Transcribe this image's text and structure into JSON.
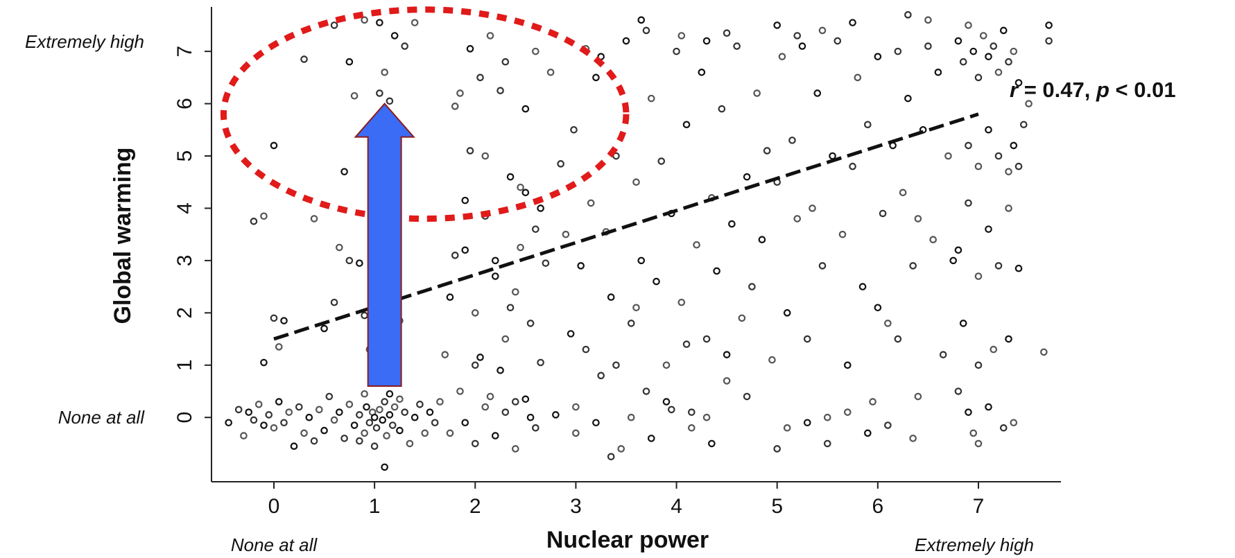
{
  "chart_data": {
    "type": "scatter",
    "title": "",
    "xlabel": "Nuclear power",
    "ylabel": "Global warming",
    "xlim": [
      -0.62,
      7.82
    ],
    "ylim": [
      -1.23,
      7.85
    ],
    "x_ticks": [
      "0",
      "1",
      "2",
      "3",
      "4",
      "5",
      "6",
      "7"
    ],
    "y_ticks": [
      "0",
      "1",
      "2",
      "3",
      "4",
      "5",
      "6",
      "7"
    ],
    "x_anchor_low": "None at all",
    "x_anchor_high": "Extremely high",
    "y_anchor_low": "None at all",
    "y_anchor_high": "Extremely high",
    "grid": false,
    "regression": {
      "style": "dashed",
      "x": [
        0,
        7
      ],
      "y": [
        1.5,
        5.8
      ],
      "label_r": "r",
      "label_rest": " = 0.47, ",
      "label_p": "p",
      "label_tail": " < 0.01"
    },
    "annotations": {
      "ellipse": {
        "color": "#e11a1a",
        "style": "dotted",
        "center": [
          1.5,
          5.8
        ],
        "rx": 2.0,
        "ry": 2.0
      },
      "arrow": {
        "color": "#3b6cf6",
        "from": [
          1.1,
          0.6
        ],
        "to": [
          1.1,
          6.0
        ]
      }
    },
    "point_style": {
      "marker": "hollow circle",
      "color": "#333333"
    },
    "points": [
      [
        -0.45,
        -0.1
      ],
      [
        -0.35,
        0.15
      ],
      [
        -0.3,
        -0.35
      ],
      [
        -0.25,
        0.1
      ],
      [
        -0.2,
        -0.05
      ],
      [
        -0.15,
        0.25
      ],
      [
        -0.1,
        -0.15
      ],
      [
        -0.05,
        0.05
      ],
      [
        0.0,
        -0.2
      ],
      [
        0.05,
        0.3
      ],
      [
        0.1,
        -0.1
      ],
      [
        0.15,
        0.1
      ],
      [
        0.2,
        -0.55
      ],
      [
        0.25,
        0.2
      ],
      [
        0.3,
        -0.3
      ],
      [
        0.35,
        0.0
      ],
      [
        0.4,
        -0.45
      ],
      [
        0.45,
        0.15
      ],
      [
        0.5,
        -0.25
      ],
      [
        0.55,
        0.4
      ],
      [
        0.6,
        -0.05
      ],
      [
        0.65,
        0.1
      ],
      [
        0.7,
        -0.4
      ],
      [
        0.75,
        0.25
      ],
      [
        0.8,
        -0.15
      ],
      [
        0.85,
        0.05
      ],
      [
        0.9,
        -0.3
      ],
      [
        0.92,
        0.2
      ],
      [
        0.95,
        -0.1
      ],
      [
        0.98,
        0.1
      ],
      [
        1.0,
        0.0
      ],
      [
        1.02,
        -0.2
      ],
      [
        1.05,
        0.15
      ],
      [
        1.08,
        -0.05
      ],
      [
        1.1,
        0.3
      ],
      [
        1.12,
        -0.35
      ],
      [
        1.15,
        0.05
      ],
      [
        1.18,
        -0.15
      ],
      [
        1.2,
        0.2
      ],
      [
        1.25,
        -0.25
      ],
      [
        1.3,
        0.1
      ],
      [
        1.35,
        -0.5
      ],
      [
        1.4,
        0.0
      ],
      [
        1.45,
        0.25
      ],
      [
        1.5,
        -0.3
      ],
      [
        1.55,
        0.1
      ],
      [
        1.6,
        -0.1
      ],
      [
        1.65,
        0.3
      ],
      [
        1.1,
        -0.95
      ],
      [
        1.0,
        -0.55
      ],
      [
        0.9,
        0.45
      ],
      [
        1.15,
        0.45
      ],
      [
        0.85,
        -0.45
      ],
      [
        1.25,
        0.35
      ],
      [
        -0.1,
        1.05
      ],
      [
        0.0,
        1.9
      ],
      [
        0.05,
        1.35
      ],
      [
        0.1,
        1.85
      ],
      [
        -0.2,
        3.75
      ],
      [
        -0.1,
        3.85
      ],
      [
        0.0,
        5.2
      ],
      [
        0.3,
        6.85
      ],
      [
        0.4,
        3.8
      ],
      [
        0.5,
        1.7
      ],
      [
        0.6,
        2.2
      ],
      [
        0.65,
        3.25
      ],
      [
        0.7,
        4.7
      ],
      [
        0.75,
        3.0
      ],
      [
        0.8,
        6.15
      ],
      [
        0.85,
        2.95
      ],
      [
        0.9,
        1.95
      ],
      [
        0.95,
        1.3
      ],
      [
        1.0,
        4.9
      ],
      [
        1.05,
        6.2
      ],
      [
        1.1,
        6.6
      ],
      [
        1.15,
        3.3
      ],
      [
        1.2,
        5.35
      ],
      [
        1.25,
        1.85
      ],
      [
        0.75,
        6.8
      ],
      [
        0.6,
        7.5
      ],
      [
        0.9,
        7.6
      ],
      [
        1.05,
        7.55
      ],
      [
        1.3,
        7.1
      ],
      [
        1.4,
        7.55
      ],
      [
        1.2,
        7.3
      ],
      [
        1.15,
        6.05
      ],
      [
        1.7,
        1.2
      ],
      [
        1.75,
        2.3
      ],
      [
        1.8,
        3.1
      ],
      [
        1.85,
        0.5
      ],
      [
        1.9,
        4.15
      ],
      [
        1.95,
        5.1
      ],
      [
        2.0,
        2.0
      ],
      [
        2.05,
        1.15
      ],
      [
        2.1,
        3.85
      ],
      [
        2.15,
        0.4
      ],
      [
        2.2,
        2.7
      ],
      [
        2.25,
        6.25
      ],
      [
        2.3,
        1.5
      ],
      [
        2.35,
        4.6
      ],
      [
        2.4,
        0.3
      ],
      [
        2.45,
        3.25
      ],
      [
        2.5,
        5.9
      ],
      [
        2.55,
        1.8
      ],
      [
        2.6,
        7.0
      ],
      [
        2.65,
        4.0
      ],
      [
        2.7,
        2.95
      ],
      [
        2.75,
        6.6
      ],
      [
        2.8,
        0.05
      ],
      [
        2.85,
        4.85
      ],
      [
        2.9,
        3.5
      ],
      [
        2.95,
        1.6
      ],
      [
        2.98,
        5.5
      ],
      [
        1.85,
        6.2
      ],
      [
        1.95,
        7.05
      ],
      [
        2.05,
        6.5
      ],
      [
        2.15,
        7.3
      ],
      [
        2.25,
        0.9
      ],
      [
        2.35,
        2.1
      ],
      [
        2.45,
        4.4
      ],
      [
        2.55,
        0.0
      ],
      [
        2.65,
        1.05
      ],
      [
        1.75,
        -0.3
      ],
      [
        1.9,
        -0.1
      ],
      [
        2.0,
        -0.5
      ],
      [
        2.1,
        0.2
      ],
      [
        2.2,
        -0.35
      ],
      [
        2.3,
        0.1
      ],
      [
        2.4,
        -0.6
      ],
      [
        2.5,
        0.35
      ],
      [
        2.6,
        -0.2
      ],
      [
        1.8,
        5.95
      ],
      [
        1.9,
        3.2
      ],
      [
        2.0,
        1.0
      ],
      [
        2.1,
        5.0
      ],
      [
        2.2,
        3.0
      ],
      [
        2.3,
        6.8
      ],
      [
        2.4,
        2.4
      ],
      [
        2.5,
        4.3
      ],
      [
        2.6,
        3.6
      ],
      [
        3.0,
        0.2
      ],
      [
        3.05,
        2.9
      ],
      [
        3.1,
        1.3
      ],
      [
        3.15,
        4.1
      ],
      [
        3.2,
        6.5
      ],
      [
        3.25,
        0.8
      ],
      [
        3.3,
        3.55
      ],
      [
        3.35,
        2.3
      ],
      [
        3.4,
        5.0
      ],
      [
        3.45,
        -0.6
      ],
      [
        3.5,
        7.2
      ],
      [
        3.55,
        1.8
      ],
      [
        3.6,
        4.5
      ],
      [
        3.65,
        3.0
      ],
      [
        3.7,
        0.5
      ],
      [
        3.75,
        6.1
      ],
      [
        3.8,
        2.6
      ],
      [
        3.85,
        4.9
      ],
      [
        3.9,
        1.0
      ],
      [
        3.95,
        3.9
      ],
      [
        4.0,
        7.0
      ],
      [
        4.05,
        2.2
      ],
      [
        4.1,
        5.6
      ],
      [
        4.15,
        0.1
      ],
      [
        4.2,
        3.3
      ],
      [
        4.25,
        6.6
      ],
      [
        4.3,
        1.5
      ],
      [
        4.35,
        4.2
      ],
      [
        4.4,
        2.8
      ],
      [
        4.45,
        5.9
      ],
      [
        4.5,
        0.7
      ],
      [
        4.55,
        3.7
      ],
      [
        4.6,
        7.1
      ],
      [
        4.65,
        1.9
      ],
      [
        4.7,
        4.6
      ],
      [
        4.75,
        2.5
      ],
      [
        4.8,
        6.2
      ],
      [
        4.85,
        3.4
      ],
      [
        4.9,
        5.1
      ],
      [
        4.95,
        1.1
      ],
      [
        3.65,
        7.6
      ],
      [
        3.7,
        7.4
      ],
      [
        4.05,
        7.3
      ],
      [
        4.3,
        7.2
      ],
      [
        4.5,
        7.35
      ],
      [
        3.1,
        7.05
      ],
      [
        3.25,
        6.9
      ],
      [
        3.4,
        1.0
      ],
      [
        3.6,
        2.1
      ],
      [
        3.9,
        0.3
      ],
      [
        4.1,
        1.4
      ],
      [
        4.3,
        0.0
      ],
      [
        4.5,
        1.2
      ],
      [
        4.7,
        0.4
      ],
      [
        3.0,
        -0.3
      ],
      [
        3.2,
        -0.1
      ],
      [
        3.35,
        -0.75
      ],
      [
        3.55,
        0.0
      ],
      [
        3.75,
        -0.4
      ],
      [
        3.95,
        0.15
      ],
      [
        4.15,
        -0.2
      ],
      [
        4.35,
        -0.5
      ],
      [
        5.0,
        4.5
      ],
      [
        5.05,
        6.9
      ],
      [
        5.1,
        2.0
      ],
      [
        5.15,
        5.3
      ],
      [
        5.2,
        3.8
      ],
      [
        5.25,
        7.1
      ],
      [
        5.3,
        1.5
      ],
      [
        5.35,
        4.0
      ],
      [
        5.4,
        6.2
      ],
      [
        5.45,
        2.9
      ],
      [
        5.5,
        0.0
      ],
      [
        5.55,
        5.0
      ],
      [
        5.6,
        7.2
      ],
      [
        5.65,
        3.5
      ],
      [
        5.7,
        1.0
      ],
      [
        5.75,
        4.8
      ],
      [
        5.8,
        6.5
      ],
      [
        5.85,
        2.5
      ],
      [
        5.9,
        5.6
      ],
      [
        5.95,
        0.3
      ],
      [
        6.0,
        6.9
      ],
      [
        6.05,
        3.9
      ],
      [
        6.1,
        1.8
      ],
      [
        6.15,
        5.2
      ],
      [
        6.2,
        7.0
      ],
      [
        6.25,
        4.3
      ],
      [
        6.3,
        6.1
      ],
      [
        6.35,
        2.9
      ],
      [
        6.4,
        0.4
      ],
      [
        6.45,
        5.5
      ],
      [
        6.5,
        7.1
      ],
      [
        6.55,
        3.4
      ],
      [
        6.6,
        6.6
      ],
      [
        6.65,
        1.2
      ],
      [
        6.7,
        5.0
      ],
      [
        6.75,
        3.0
      ],
      [
        5.0,
        -0.6
      ],
      [
        5.1,
        -0.2
      ],
      [
        5.3,
        -0.1
      ],
      [
        5.5,
        -0.5
      ],
      [
        5.7,
        0.1
      ],
      [
        5.9,
        -0.3
      ],
      [
        6.1,
        -0.15
      ],
      [
        6.35,
        -0.4
      ],
      [
        5.0,
        7.5
      ],
      [
        5.2,
        7.3
      ],
      [
        5.45,
        7.4
      ],
      [
        5.75,
        7.55
      ],
      [
        6.3,
        7.7
      ],
      [
        6.5,
        7.6
      ],
      [
        6.0,
        2.1
      ],
      [
        6.2,
        1.5
      ],
      [
        6.4,
        3.8
      ],
      [
        6.8,
        7.2
      ],
      [
        6.85,
        6.8
      ],
      [
        6.9,
        7.5
      ],
      [
        6.95,
        7.0
      ],
      [
        7.0,
        6.5
      ],
      [
        7.05,
        7.3
      ],
      [
        7.1,
        6.9
      ],
      [
        7.15,
        7.1
      ],
      [
        7.2,
        6.6
      ],
      [
        7.25,
        7.4
      ],
      [
        7.3,
        6.8
      ],
      [
        7.35,
        7.0
      ],
      [
        7.4,
        6.4
      ],
      [
        6.9,
        5.2
      ],
      [
        7.0,
        4.8
      ],
      [
        7.1,
        5.5
      ],
      [
        7.2,
        5.0
      ],
      [
        7.3,
        4.7
      ],
      [
        6.8,
        3.2
      ],
      [
        6.9,
        4.1
      ],
      [
        7.0,
        2.7
      ],
      [
        7.1,
        3.6
      ],
      [
        7.2,
        2.9
      ],
      [
        7.3,
        4.0
      ],
      [
        6.85,
        1.8
      ],
      [
        7.0,
        1.0
      ],
      [
        7.15,
        1.3
      ],
      [
        7.3,
        1.5
      ],
      [
        6.8,
        0.5
      ],
      [
        6.95,
        -0.3
      ],
      [
        7.1,
        0.2
      ],
      [
        7.25,
        -0.2
      ],
      [
        7.35,
        -0.1
      ],
      [
        7.4,
        2.85
      ],
      [
        7.45,
        5.6
      ],
      [
        7.5,
        6.0
      ],
      [
        7.7,
        7.5
      ],
      [
        7.7,
        7.2
      ],
      [
        7.65,
        1.25
      ],
      [
        7.35,
        5.2
      ],
      [
        7.4,
        4.8
      ],
      [
        7.0,
        -0.5
      ],
      [
        6.9,
        0.1
      ]
    ]
  }
}
